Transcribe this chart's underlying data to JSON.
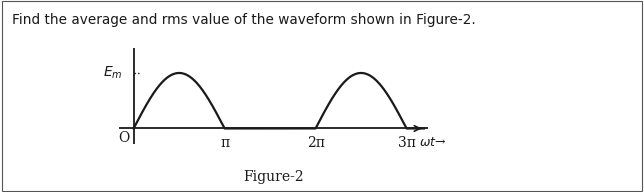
{
  "title_text": "Find the average and rms value of the waveform shown in Figure-2.",
  "figure_label": "Figure-2",
  "x_ticks": [
    3.14159265,
    6.2831853,
    9.42477796
  ],
  "x_tick_labels": [
    "π",
    "2π",
    "3π"
  ],
  "em_level": 1.0,
  "background_color": "#ffffff",
  "waveform_color": "#1a1a1a",
  "axis_color": "#1a1a1a",
  "text_color": "#1a1a1a",
  "line_width": 1.6,
  "title_fontsize": 9.8,
  "label_fontsize": 10,
  "caption_fontsize": 10
}
